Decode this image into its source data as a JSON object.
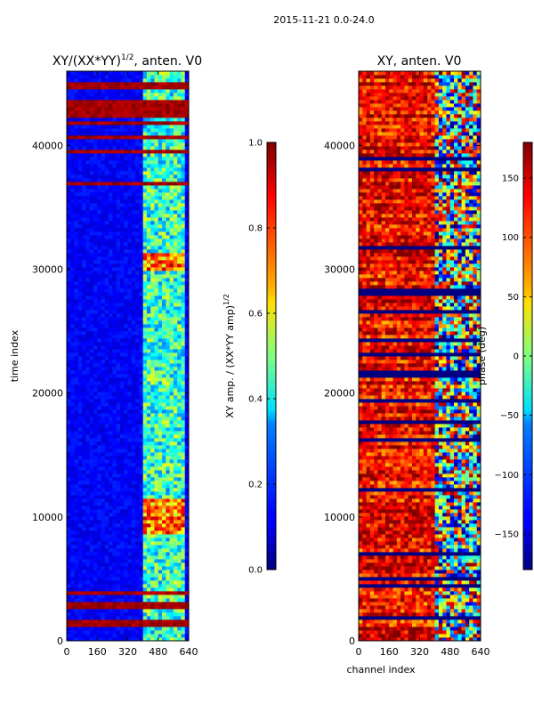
{
  "figure_title": "2015-11-21 0.0-24.0",
  "colors": {
    "background": "#ffffff",
    "frame": "#000000",
    "jet_low": "#00007f",
    "jet_high": "#7f0000"
  },
  "chart_data": [
    {
      "type": "heatmap",
      "title_prefix": "XY/(XX*YY)",
      "title_exponent": "1/2",
      "title_suffix": ", anten. V0",
      "xlabel": "",
      "ylabel": "time index",
      "xlim": [
        0,
        640
      ],
      "ylim": [
        0,
        46000
      ],
      "xticks": [
        "0",
        "160",
        "320",
        "480",
        "640"
      ],
      "yticks": [
        "0",
        "10000",
        "20000",
        "30000",
        "40000"
      ],
      "ytick_values": [
        0,
        10000,
        20000,
        30000,
        40000
      ],
      "xtick_values": [
        0,
        160,
        320,
        480,
        640
      ],
      "value_range": [
        0,
        1
      ],
      "colormap": "jet",
      "features": {
        "background_level": 0.12,
        "bright_channel_band": [
          410,
          620
        ],
        "flagged_rows_level": 1.0,
        "flagged_time_ranges": [
          [
            0,
            4700
          ],
          [
            36800,
            37200
          ],
          [
            39500,
            46000
          ]
        ],
        "bright_time_ranges": [
          [
            8500,
            11500
          ],
          [
            29800,
            31300
          ]
        ]
      },
      "colorbar": {
        "label_prefix": "XY amp. / (XX*YY amp)",
        "label_exponent": "1/2",
        "ticks": [
          "0.0",
          "0.2",
          "0.4",
          "0.6",
          "0.8",
          "1.0"
        ],
        "tick_values": [
          0.0,
          0.2,
          0.4,
          0.6,
          0.8,
          1.0
        ]
      }
    },
    {
      "type": "heatmap",
      "title": "XY, anten. V0",
      "xlabel": "channel index",
      "ylabel": "",
      "xlim": [
        0,
        640
      ],
      "ylim": [
        0,
        46000
      ],
      "xticks": [
        "0",
        "160",
        "320",
        "480",
        "640"
      ],
      "yticks": [
        "0",
        "10000",
        "20000",
        "30000",
        "40000"
      ],
      "ytick_values": [
        0,
        10000,
        20000,
        30000,
        40000
      ],
      "xtick_values": [
        0,
        160,
        320,
        480,
        640
      ],
      "value_range": [
        -180,
        180
      ],
      "colormap": "jet",
      "features": {
        "dominant_phase": 140,
        "channel_boundary": 400,
        "flagged_rows_level": -180
      },
      "colorbar": {
        "label": "phase (deg)",
        "ticks": [
          "−150",
          "−100",
          "−50",
          "0",
          "50",
          "100",
          "150"
        ],
        "tick_values": [
          -150,
          -100,
          -50,
          0,
          50,
          100,
          150
        ]
      }
    }
  ]
}
